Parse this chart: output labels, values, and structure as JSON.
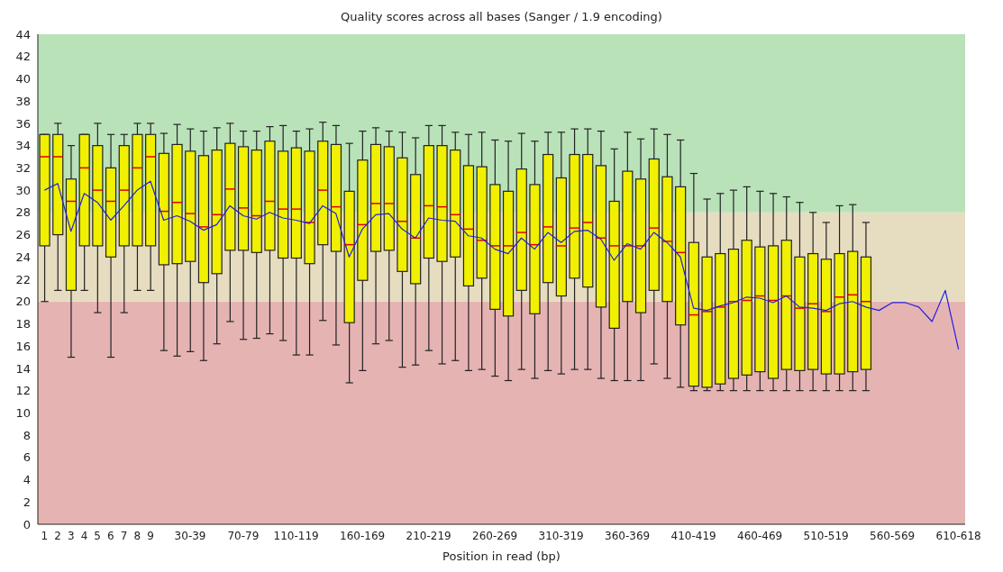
{
  "chart_data": {
    "type": "box",
    "title": "Quality scores across all bases (Sanger / 1.9 encoding)",
    "xlabel": "Position in read (bp)",
    "categories": [
      "1",
      "2",
      "3",
      "4",
      "5",
      "6",
      "7",
      "8",
      "9",
      null,
      null,
      "30-39",
      null,
      null,
      null,
      "70-79",
      null,
      null,
      null,
      "110-119",
      null,
      null,
      null,
      null,
      "160-169",
      null,
      null,
      null,
      null,
      "210-219",
      null,
      null,
      null,
      null,
      "260-269",
      null,
      null,
      null,
      null,
      "310-319",
      null,
      null,
      null,
      null,
      "360-369",
      null,
      null,
      null,
      null,
      "410-419",
      null,
      null,
      null,
      null,
      "460-469",
      null,
      null,
      null,
      null,
      "510-519",
      null,
      null,
      null,
      null,
      "560-569",
      null,
      null,
      null,
      null,
      "610-618"
    ],
    "ylim": [
      0,
      44
    ],
    "yticks": [
      0,
      2,
      4,
      6,
      8,
      10,
      12,
      14,
      16,
      18,
      20,
      22,
      24,
      26,
      28,
      30,
      32,
      34,
      36,
      38,
      40,
      42,
      44
    ],
    "bands": [
      {
        "axis": "y",
        "from": 0,
        "to": 20,
        "color": "#e6b3b3"
      },
      {
        "axis": "y",
        "from": 20,
        "to": 28,
        "color": "#e6dcc0"
      },
      {
        "axis": "y",
        "from": 28,
        "to": 44,
        "color": "#b9e2b9"
      }
    ],
    "series": [
      {
        "color": "#f0f000",
        "boxes": [
          {
            "low": 20,
            "q1": 25,
            "median": 33,
            "q3": 35,
            "high": 35
          },
          {
            "low": 21,
            "q1": 26,
            "median": 33,
            "q3": 35,
            "high": 36
          },
          {
            "low": 15,
            "q1": 21,
            "median": 29,
            "q3": 31,
            "high": 34
          },
          {
            "low": 21,
            "q1": 25,
            "median": 32,
            "q3": 35,
            "high": 35
          },
          {
            "low": 19,
            "q1": 25,
            "median": 30,
            "q3": 34,
            "high": 36
          },
          {
            "low": 15,
            "q1": 24,
            "median": 29,
            "q3": 32,
            "high": 35
          },
          {
            "low": 19,
            "q1": 25,
            "median": 30,
            "q3": 34,
            "high": 35
          },
          {
            "low": 21,
            "q1": 25,
            "median": 32,
            "q3": 35,
            "high": 36
          },
          {
            "low": 21,
            "q1": 25,
            "median": 33,
            "q3": 35,
            "high": 36
          },
          {
            "low": 15.6,
            "q1": 23.3,
            "median": 28.1,
            "q3": 33.3,
            "high": 35.1
          },
          {
            "low": 15.1,
            "q1": 23.4,
            "median": 28.9,
            "q3": 34.1,
            "high": 35.9
          },
          {
            "low": 15.5,
            "q1": 23.6,
            "median": 27.9,
            "q3": 33.5,
            "high": 35.5
          },
          {
            "low": 14.7,
            "q1": 21.7,
            "median": 26.7,
            "q3": 33.1,
            "high": 35.3
          },
          {
            "low": 16.2,
            "q1": 22.5,
            "median": 27.8,
            "q3": 33.6,
            "high": 35.6
          },
          {
            "low": 18.2,
            "q1": 24.6,
            "median": 30.1,
            "q3": 34.2,
            "high": 36
          },
          {
            "low": 16.6,
            "q1": 24.6,
            "median": 28.4,
            "q3": 33.9,
            "high": 35.3
          },
          {
            "low": 16.7,
            "q1": 24.4,
            "median": 27.7,
            "q3": 33.6,
            "high": 35.3
          },
          {
            "low": 17.1,
            "q1": 24.6,
            "median": 29,
            "q3": 34.4,
            "high": 35.7
          },
          {
            "low": 16.5,
            "q1": 23.9,
            "median": 28.3,
            "q3": 33.5,
            "high": 35.8
          },
          {
            "low": 15.2,
            "q1": 23.9,
            "median": 28.3,
            "q3": 33.8,
            "high": 35.3
          },
          {
            "low": 15.2,
            "q1": 23.4,
            "median": 27.1,
            "q3": 33.5,
            "high": 35.5
          },
          {
            "low": 18.3,
            "q1": 25.1,
            "median": 30,
            "q3": 34.4,
            "high": 36.1
          },
          {
            "low": 16.1,
            "q1": 24.5,
            "median": 28.5,
            "q3": 34.1,
            "high": 35.8
          },
          {
            "low": 12.7,
            "q1": 18.1,
            "median": 25.1,
            "q3": 29.9,
            "high": 34.2
          },
          {
            "low": 13.8,
            "q1": 21.9,
            "median": 26.9,
            "q3": 32.7,
            "high": 35.3
          },
          {
            "low": 16.2,
            "q1": 24.5,
            "median": 28.8,
            "q3": 34.1,
            "high": 35.6
          },
          {
            "low": 16.5,
            "q1": 24.6,
            "median": 28.8,
            "q3": 33.9,
            "high": 35.3
          },
          {
            "low": 14.1,
            "q1": 22.7,
            "median": 27.2,
            "q3": 32.9,
            "high": 35.2
          },
          {
            "low": 14.3,
            "q1": 21.6,
            "median": 25.7,
            "q3": 31.4,
            "high": 34.7
          },
          {
            "low": 15.6,
            "q1": 23.9,
            "median": 28.6,
            "q3": 34,
            "high": 35.8
          },
          {
            "low": 14.4,
            "q1": 23.6,
            "median": 28.5,
            "q3": 34,
            "high": 35.8
          },
          {
            "low": 14.7,
            "q1": 24,
            "median": 27.8,
            "q3": 33.6,
            "high": 35.2
          },
          {
            "low": 13.8,
            "q1": 21.4,
            "median": 26.5,
            "q3": 32.2,
            "high": 35
          },
          {
            "low": 13.9,
            "q1": 22.1,
            "median": 25.5,
            "q3": 32.1,
            "high": 35.2
          },
          {
            "low": 13.3,
            "q1": 19.3,
            "median": 25,
            "q3": 30.5,
            "high": 34.5
          },
          {
            "low": 12.9,
            "q1": 18.7,
            "median": 25,
            "q3": 29.9,
            "high": 34.4
          },
          {
            "low": 13.9,
            "q1": 21,
            "median": 26.2,
            "q3": 31.9,
            "high": 35.1
          },
          {
            "low": 13.1,
            "q1": 18.9,
            "median": 25.1,
            "q3": 30.5,
            "high": 34.4
          },
          {
            "low": 13.8,
            "q1": 21.7,
            "median": 26.7,
            "q3": 33.2,
            "high": 35.2
          },
          {
            "low": 13.5,
            "q1": 20.5,
            "median": 25,
            "q3": 31.1,
            "high": 35.2
          },
          {
            "low": 13.9,
            "q1": 22.1,
            "median": 26.6,
            "q3": 33.2,
            "high": 35.5
          },
          {
            "low": 13.9,
            "q1": 21.3,
            "median": 27.1,
            "q3": 33.2,
            "high": 35.5
          },
          {
            "low": 13.1,
            "q1": 19.5,
            "median": 25.7,
            "q3": 32.2,
            "high": 35.3
          },
          {
            "low": 12.9,
            "q1": 17.6,
            "median": 25,
            "q3": 29,
            "high": 33.7
          },
          {
            "low": 12.9,
            "q1": 20,
            "median": 25,
            "q3": 31.7,
            "high": 35.2
          },
          {
            "low": 12.9,
            "q1": 19,
            "median": 25,
            "q3": 31,
            "high": 34.6
          },
          {
            "low": 14.4,
            "q1": 21,
            "median": 26.6,
            "q3": 32.8,
            "high": 35.5
          },
          {
            "low": 13.1,
            "q1": 20,
            "median": 25.4,
            "q3": 31.2,
            "high": 35
          },
          {
            "low": 12.3,
            "q1": 17.9,
            "median": 24.4,
            "q3": 30.3,
            "high": 34.5
          },
          {
            "low": 12,
            "q1": 12.4,
            "median": 18.8,
            "q3": 25.3,
            "high": 31.5
          },
          {
            "low": 12,
            "q1": 12.3,
            "median": 19.1,
            "q3": 24,
            "high": 29.2
          },
          {
            "low": 12,
            "q1": 12.6,
            "median": 19.5,
            "q3": 24.3,
            "high": 29.7
          },
          {
            "low": 12,
            "q1": 13.1,
            "median": 20,
            "q3": 24.7,
            "high": 30
          },
          {
            "low": 12,
            "q1": 13.4,
            "median": 20.1,
            "q3": 25.5,
            "high": 30.3
          },
          {
            "low": 12,
            "q1": 13.7,
            "median": 20.5,
            "q3": 24.9,
            "high": 29.9
          },
          {
            "low": 12,
            "q1": 13.1,
            "median": 20.1,
            "q3": 25,
            "high": 29.7
          },
          {
            "low": 12,
            "q1": 13.9,
            "median": 20.5,
            "q3": 25.5,
            "high": 29.4
          },
          {
            "low": 12,
            "q1": 13.8,
            "median": 19.4,
            "q3": 24,
            "high": 28.9
          },
          {
            "low": 12,
            "q1": 13.9,
            "median": 19.8,
            "q3": 24.3,
            "high": 28
          },
          {
            "low": 12,
            "q1": 13.5,
            "median": 19.1,
            "q3": 23.8,
            "high": 27.1
          },
          {
            "low": 12,
            "q1": 13.5,
            "median": 20.4,
            "q3": 24.3,
            "high": 28.6
          },
          {
            "low": 12,
            "q1": 13.7,
            "median": 20.6,
            "q3": 24.5,
            "high": 28.7
          },
          {
            "low": 12,
            "q1": 13.9,
            "median": 20,
            "q3": 24,
            "high": 27.1
          },
          null,
          null,
          null,
          null,
          null,
          null,
          null
        ]
      },
      {
        "type": "line",
        "color": "#2020dd",
        "values": [
          30,
          30.6,
          26.3,
          29.7,
          28.9,
          27.3,
          28.6,
          30,
          30.8,
          27.3,
          27.7,
          27.2,
          26.4,
          26.9,
          28.6,
          27.7,
          27.4,
          28,
          27.5,
          27.3,
          27,
          28.6,
          27.9,
          24,
          26.5,
          27.8,
          27.9,
          26.5,
          25.7,
          27.5,
          27.3,
          27.2,
          25.9,
          25.7,
          24.7,
          24.3,
          25.7,
          24.7,
          26.2,
          25.3,
          26.3,
          26.4,
          25.6,
          23.7,
          25.2,
          24.7,
          26.2,
          25.3,
          24,
          19.4,
          19.2,
          19.6,
          19.9,
          20.4,
          20.3,
          19.9,
          20.5,
          19.5,
          19.4,
          19.2,
          19.8,
          20,
          19.5,
          19.2,
          19.9,
          19.9,
          19.5,
          18.2,
          21,
          15.7
        ]
      }
    ]
  }
}
